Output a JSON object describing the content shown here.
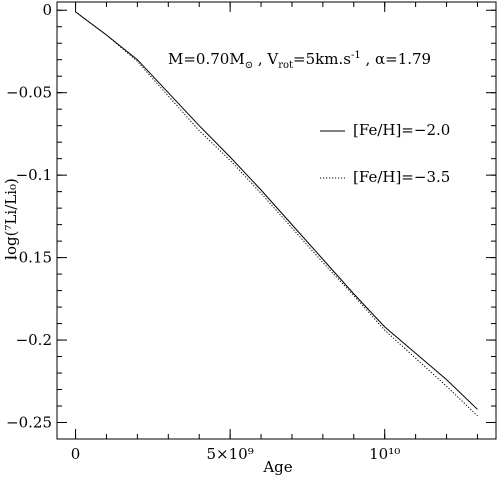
{
  "chart_data": {
    "type": "line",
    "xlabel": "Age",
    "ylabel": "log(⁷Li/Li₀)",
    "xlim": [
      -600000000.0,
      13600000000.0
    ],
    "ylim": [
      -0.26,
      0.005
    ],
    "x_ticks": [
      {
        "value": 0,
        "label": "0"
      },
      {
        "value": 5000000000,
        "label": "5×10⁹"
      },
      {
        "value": 10000000000,
        "label": "10¹⁰"
      }
    ],
    "x_minor_step": 1000000000,
    "y_ticks": [
      {
        "value": 0,
        "label": "0"
      },
      {
        "value": -0.05,
        "label": "−0.05"
      },
      {
        "value": -0.1,
        "label": "−0.1"
      },
      {
        "value": -0.15,
        "label": "−0.15"
      },
      {
        "value": -0.2,
        "label": "−0.2"
      },
      {
        "value": -0.25,
        "label": "−0.25"
      }
    ],
    "y_minor_step": 0.01,
    "annotation": "M=0.70M⊙ , Vrot=5km.s⁻¹ , α=1.79",
    "annotation_parts": {
      "mass": "M=0.70M",
      "sun": "⊙",
      "sep1": " , V",
      "vsub": "rot",
      "vel": "=5km.s",
      "vsup": "-1",
      "alpha": " , α=1.79"
    },
    "legend_position": "right",
    "grid": false,
    "series": [
      {
        "name": "[Fe/H]=−2.0",
        "style": "solid",
        "x": [
          0,
          1000000000,
          2000000000,
          3000000000,
          4000000000,
          5000000000,
          6000000000,
          7000000000,
          8000000000,
          9000000000,
          10000000000,
          11000000000,
          12000000000,
          13000000000
        ],
        "values": [
          -0.001,
          -0.015,
          -0.03,
          -0.05,
          -0.07,
          -0.089,
          -0.109,
          -0.13,
          -0.151,
          -0.172,
          -0.192,
          -0.208,
          -0.224,
          -0.242
        ]
      },
      {
        "name": "[Fe/H]=−3.5",
        "style": "dotted",
        "x": [
          0,
          1000000000,
          2000000000,
          3000000000,
          4000000000,
          5000000000,
          6000000000,
          7000000000,
          8000000000,
          9000000000,
          10000000000,
          11000000000,
          12000000000,
          13000000000
        ],
        "values": [
          -0.001,
          -0.015,
          -0.031,
          -0.052,
          -0.073,
          -0.091,
          -0.111,
          -0.132,
          -0.153,
          -0.173,
          -0.194,
          -0.211,
          -0.228,
          -0.246
        ]
      }
    ]
  }
}
